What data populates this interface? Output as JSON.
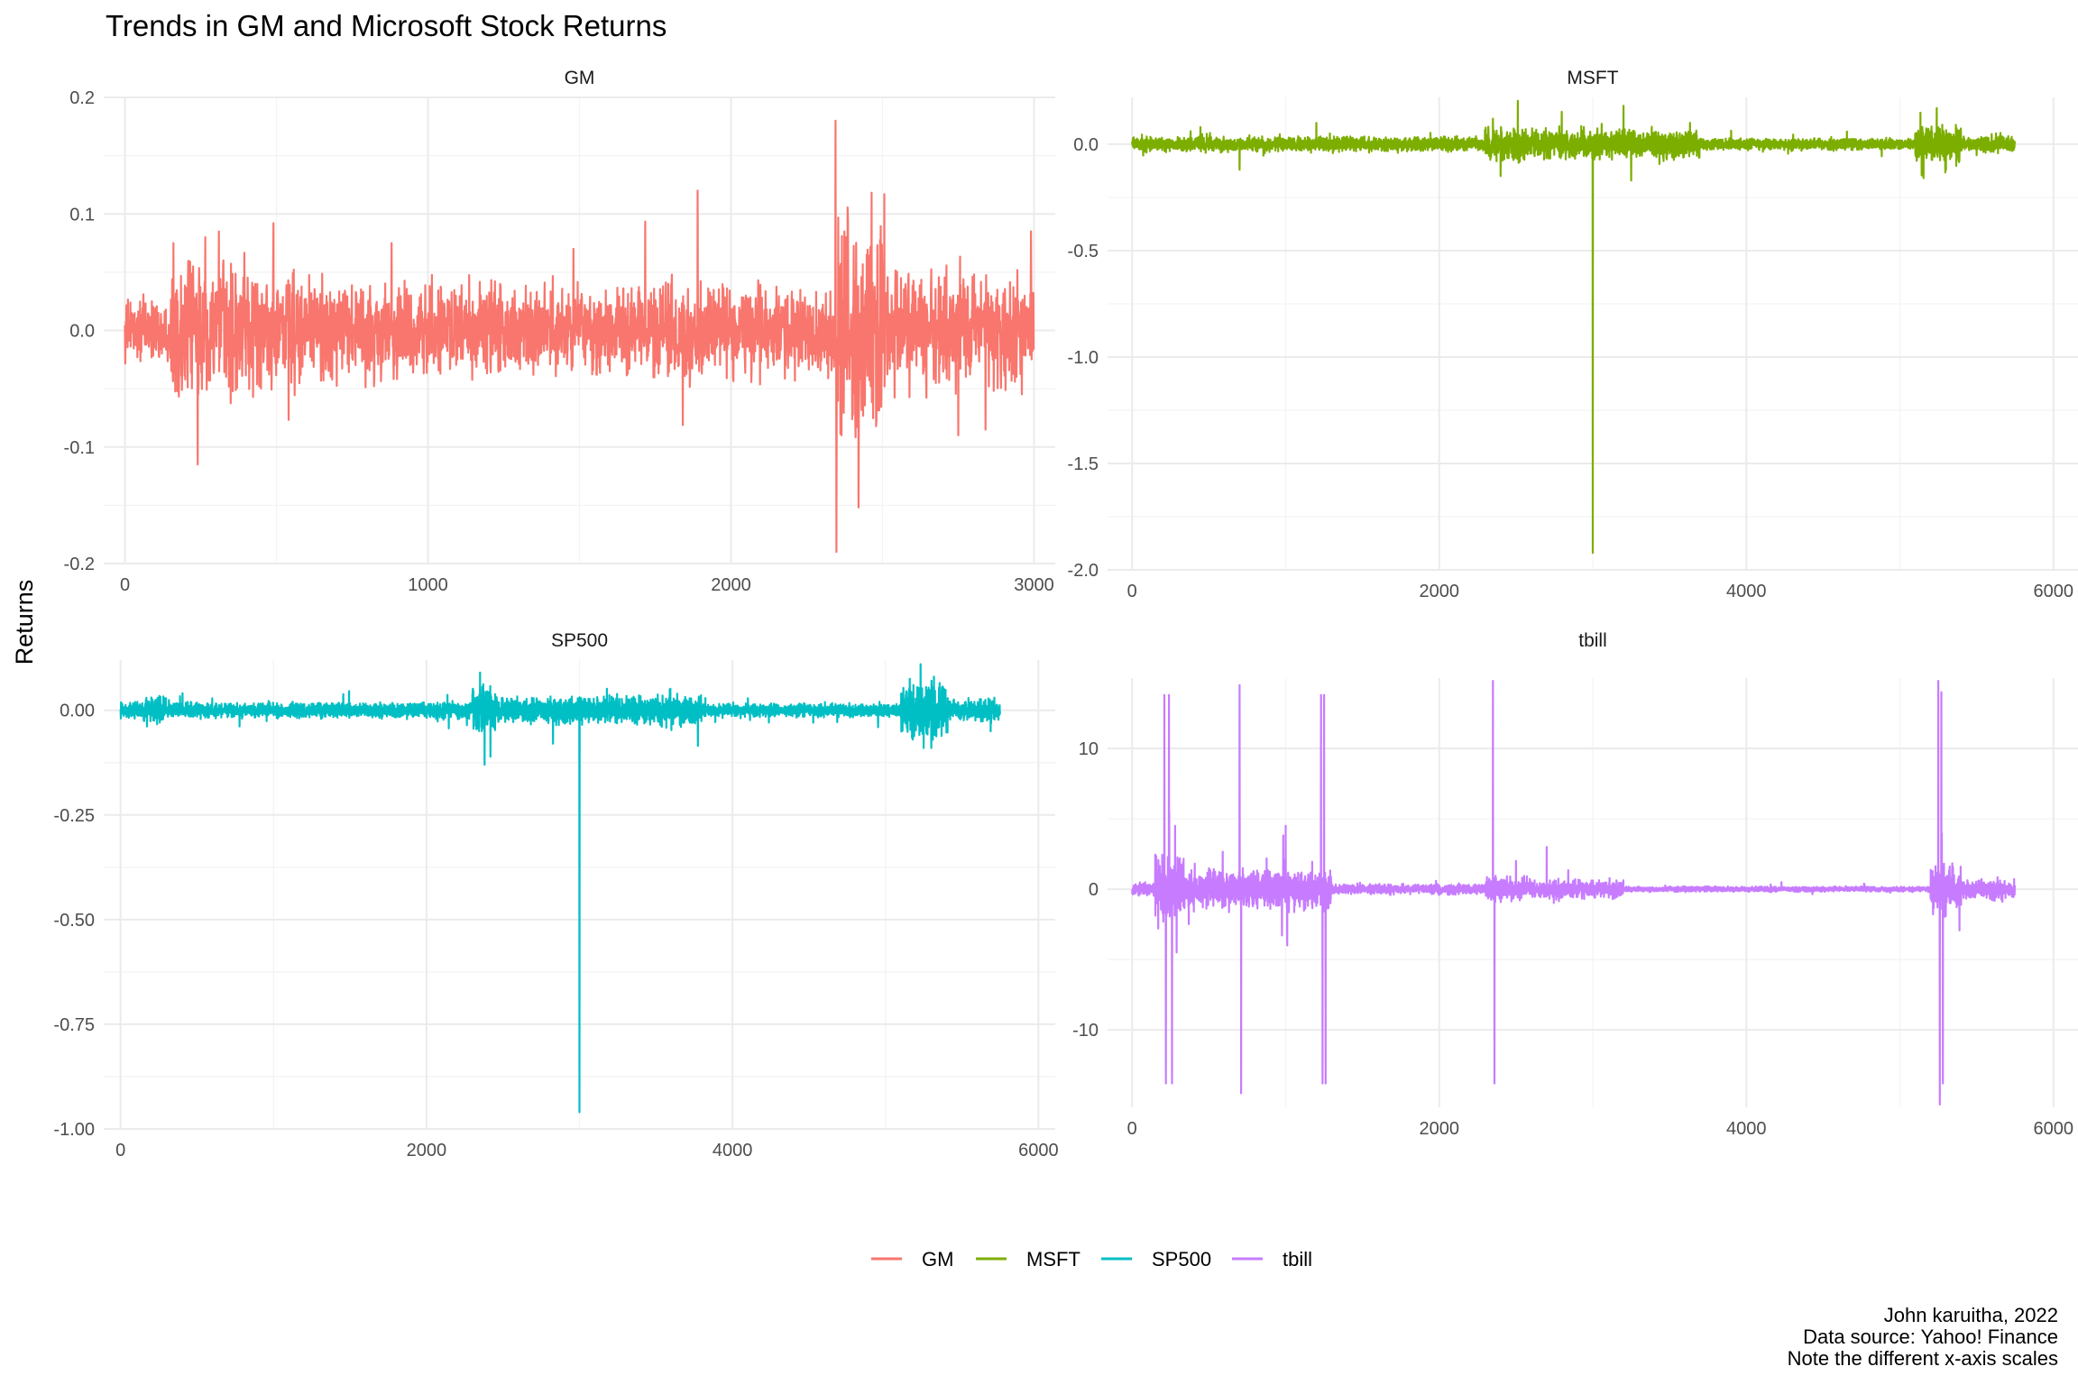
{
  "chart_data": {
    "type": "line",
    "title": "Trends in GM and Microsoft Stock Returns",
    "ylabel": "Returns",
    "xlabel": "",
    "legend": {
      "placement": "bottom",
      "items": [
        {
          "name": "GM",
          "color": "#F8766D"
        },
        {
          "name": "MSFT",
          "color": "#7CAE00"
        },
        {
          "name": "SP500",
          "color": "#00BFC4"
        },
        {
          "name": "tbill",
          "color": "#C77CFF"
        }
      ]
    },
    "caption": [
      "John karuitha, 2022",
      "Data source: Yahoo! Finance",
      "Note the different x-axis scales"
    ],
    "facets": [
      {
        "name": "GM",
        "color": "#F8766D",
        "xlim": [
          -70,
          3070
        ],
        "ylim": [
          -0.2,
          0.2
        ],
        "xticks": [
          0,
          1000,
          2000,
          3000
        ],
        "xtick_labels": [
          "0",
          "1000",
          "2000",
          "3000"
        ],
        "yticks": [
          -0.2,
          -0.1,
          0.0,
          0.1,
          0.2
        ],
        "ytick_labels": [
          "-0.2",
          "-0.1",
          "0.0",
          "0.1",
          "0.2"
        ],
        "n": 3000,
        "sigma": 0.02,
        "regimes": [
          [
            0,
            150,
            0.012
          ],
          [
            150,
            700,
            0.025
          ],
          [
            700,
            2350,
            0.018
          ],
          [
            2350,
            2500,
            0.045
          ],
          [
            2500,
            3000,
            0.022
          ]
        ],
        "spikes": [
          [
            60,
            0.02
          ],
          [
            160,
            0.075
          ],
          [
            240,
            -0.115
          ],
          [
            265,
            0.08
          ],
          [
            310,
            0.085
          ],
          [
            490,
            0.092
          ],
          [
            880,
            0.075
          ],
          [
            1480,
            0.07
          ],
          [
            1890,
            0.12
          ],
          [
            2345,
            0.18
          ],
          [
            2348,
            -0.19
          ],
          [
            2365,
            -0.09
          ],
          [
            2380,
            0.08
          ],
          [
            2750,
            -0.09
          ],
          [
            2840,
            -0.085
          ],
          [
            2990,
            0.085
          ]
        ]
      },
      {
        "name": "MSFT",
        "color": "#7CAE00",
        "xlim": [
          -160,
          6160
        ],
        "ylim": [
          -2.0,
          0.22
        ],
        "xticks": [
          0,
          2000,
          4000,
          6000
        ],
        "xtick_labels": [
          "0",
          "2000",
          "4000",
          "6000"
        ],
        "yticks": [
          -2.0,
          -1.5,
          -1.0,
          -0.5,
          0.0
        ],
        "ytick_labels": [
          "-2.0",
          "-1.5",
          "-1.0",
          "-0.5",
          "0.0"
        ],
        "n": 5750,
        "sigma": 0.025,
        "regimes": [
          [
            0,
            2300,
            0.015
          ],
          [
            2300,
            2500,
            0.035
          ],
          [
            2500,
            3700,
            0.03
          ],
          [
            3700,
            5100,
            0.012
          ],
          [
            5100,
            5400,
            0.035
          ],
          [
            5400,
            5750,
            0.015
          ]
        ],
        "spikes": [
          [
            700,
            -0.12
          ],
          [
            1200,
            0.1
          ],
          [
            2350,
            0.12
          ],
          [
            2400,
            -0.15
          ],
          [
            3000,
            -1.92
          ],
          [
            3200,
            0.18
          ],
          [
            3250,
            -0.17
          ],
          [
            5240,
            0.17
          ],
          [
            5300,
            -0.12
          ]
        ]
      },
      {
        "name": "SP500",
        "color": "#00BFC4",
        "xlim": [
          -110,
          6110
        ],
        "ylim": [
          -1.0,
          0.12
        ],
        "xticks": [
          0,
          2000,
          4000,
          6000
        ],
        "xtick_labels": [
          "0",
          "2000",
          "4000",
          "6000"
        ],
        "yticks": [
          -1.0,
          -0.75,
          -0.5,
          -0.25,
          0.0
        ],
        "ytick_labels": [
          "-1.00",
          "-0.75",
          "-0.50",
          "-0.25",
          "0.00"
        ],
        "n": 5750,
        "sigma": 0.01,
        "regimes": [
          [
            0,
            150,
            0.008
          ],
          [
            150,
            300,
            0.015
          ],
          [
            300,
            2300,
            0.008
          ],
          [
            2300,
            2450,
            0.025
          ],
          [
            2450,
            3800,
            0.015
          ],
          [
            3800,
            5100,
            0.007
          ],
          [
            5100,
            5400,
            0.03
          ],
          [
            5400,
            5750,
            0.012
          ]
        ],
        "spikes": [
          [
            2350,
            0.09
          ],
          [
            2380,
            -0.13
          ],
          [
            3000,
            -0.96
          ],
          [
            5230,
            0.11
          ],
          [
            5250,
            -0.09
          ],
          [
            5300,
            -0.09
          ]
        ]
      },
      {
        "name": "tbill",
        "color": "#C77CFF",
        "xlim": [
          -160,
          6160
        ],
        "ylim": [
          -15.5,
          15
        ],
        "xticks": [
          0,
          2000,
          4000,
          6000
        ],
        "xtick_labels": [
          "0",
          "2000",
          "4000",
          "6000"
        ],
        "yticks": [
          -10,
          0,
          10
        ],
        "ytick_labels": [
          "-10",
          "0",
          "10"
        ],
        "n": 5750,
        "sigma": 0.3,
        "regimes": [
          [
            0,
            150,
            0.2
          ],
          [
            150,
            350,
            1.0
          ],
          [
            350,
            1300,
            0.6
          ],
          [
            1300,
            2300,
            0.15
          ],
          [
            2300,
            2500,
            0.4
          ],
          [
            2500,
            3200,
            0.3
          ],
          [
            3200,
            5200,
            0.08
          ],
          [
            5200,
            5400,
            0.8
          ],
          [
            5400,
            5750,
            0.3
          ]
        ],
        "spikes": [
          [
            210,
            13.8
          ],
          [
            220,
            -13.8
          ],
          [
            240,
            13.8
          ],
          [
            260,
            -13.8
          ],
          [
            280,
            4.5
          ],
          [
            290,
            -4.5
          ],
          [
            700,
            14.5
          ],
          [
            710,
            -14.5
          ],
          [
            1000,
            4.5
          ],
          [
            1010,
            -4.0
          ],
          [
            1230,
            13.8
          ],
          [
            1240,
            -13.8
          ],
          [
            1250,
            13.8
          ],
          [
            1260,
            -13.8
          ],
          [
            2350,
            14.8
          ],
          [
            2360,
            -13.8
          ],
          [
            2500,
            2.0
          ],
          [
            2700,
            3.0
          ],
          [
            5250,
            14.8
          ],
          [
            5260,
            -15.3
          ],
          [
            5270,
            14.0
          ],
          [
            5280,
            -13.8
          ]
        ]
      }
    ]
  }
}
